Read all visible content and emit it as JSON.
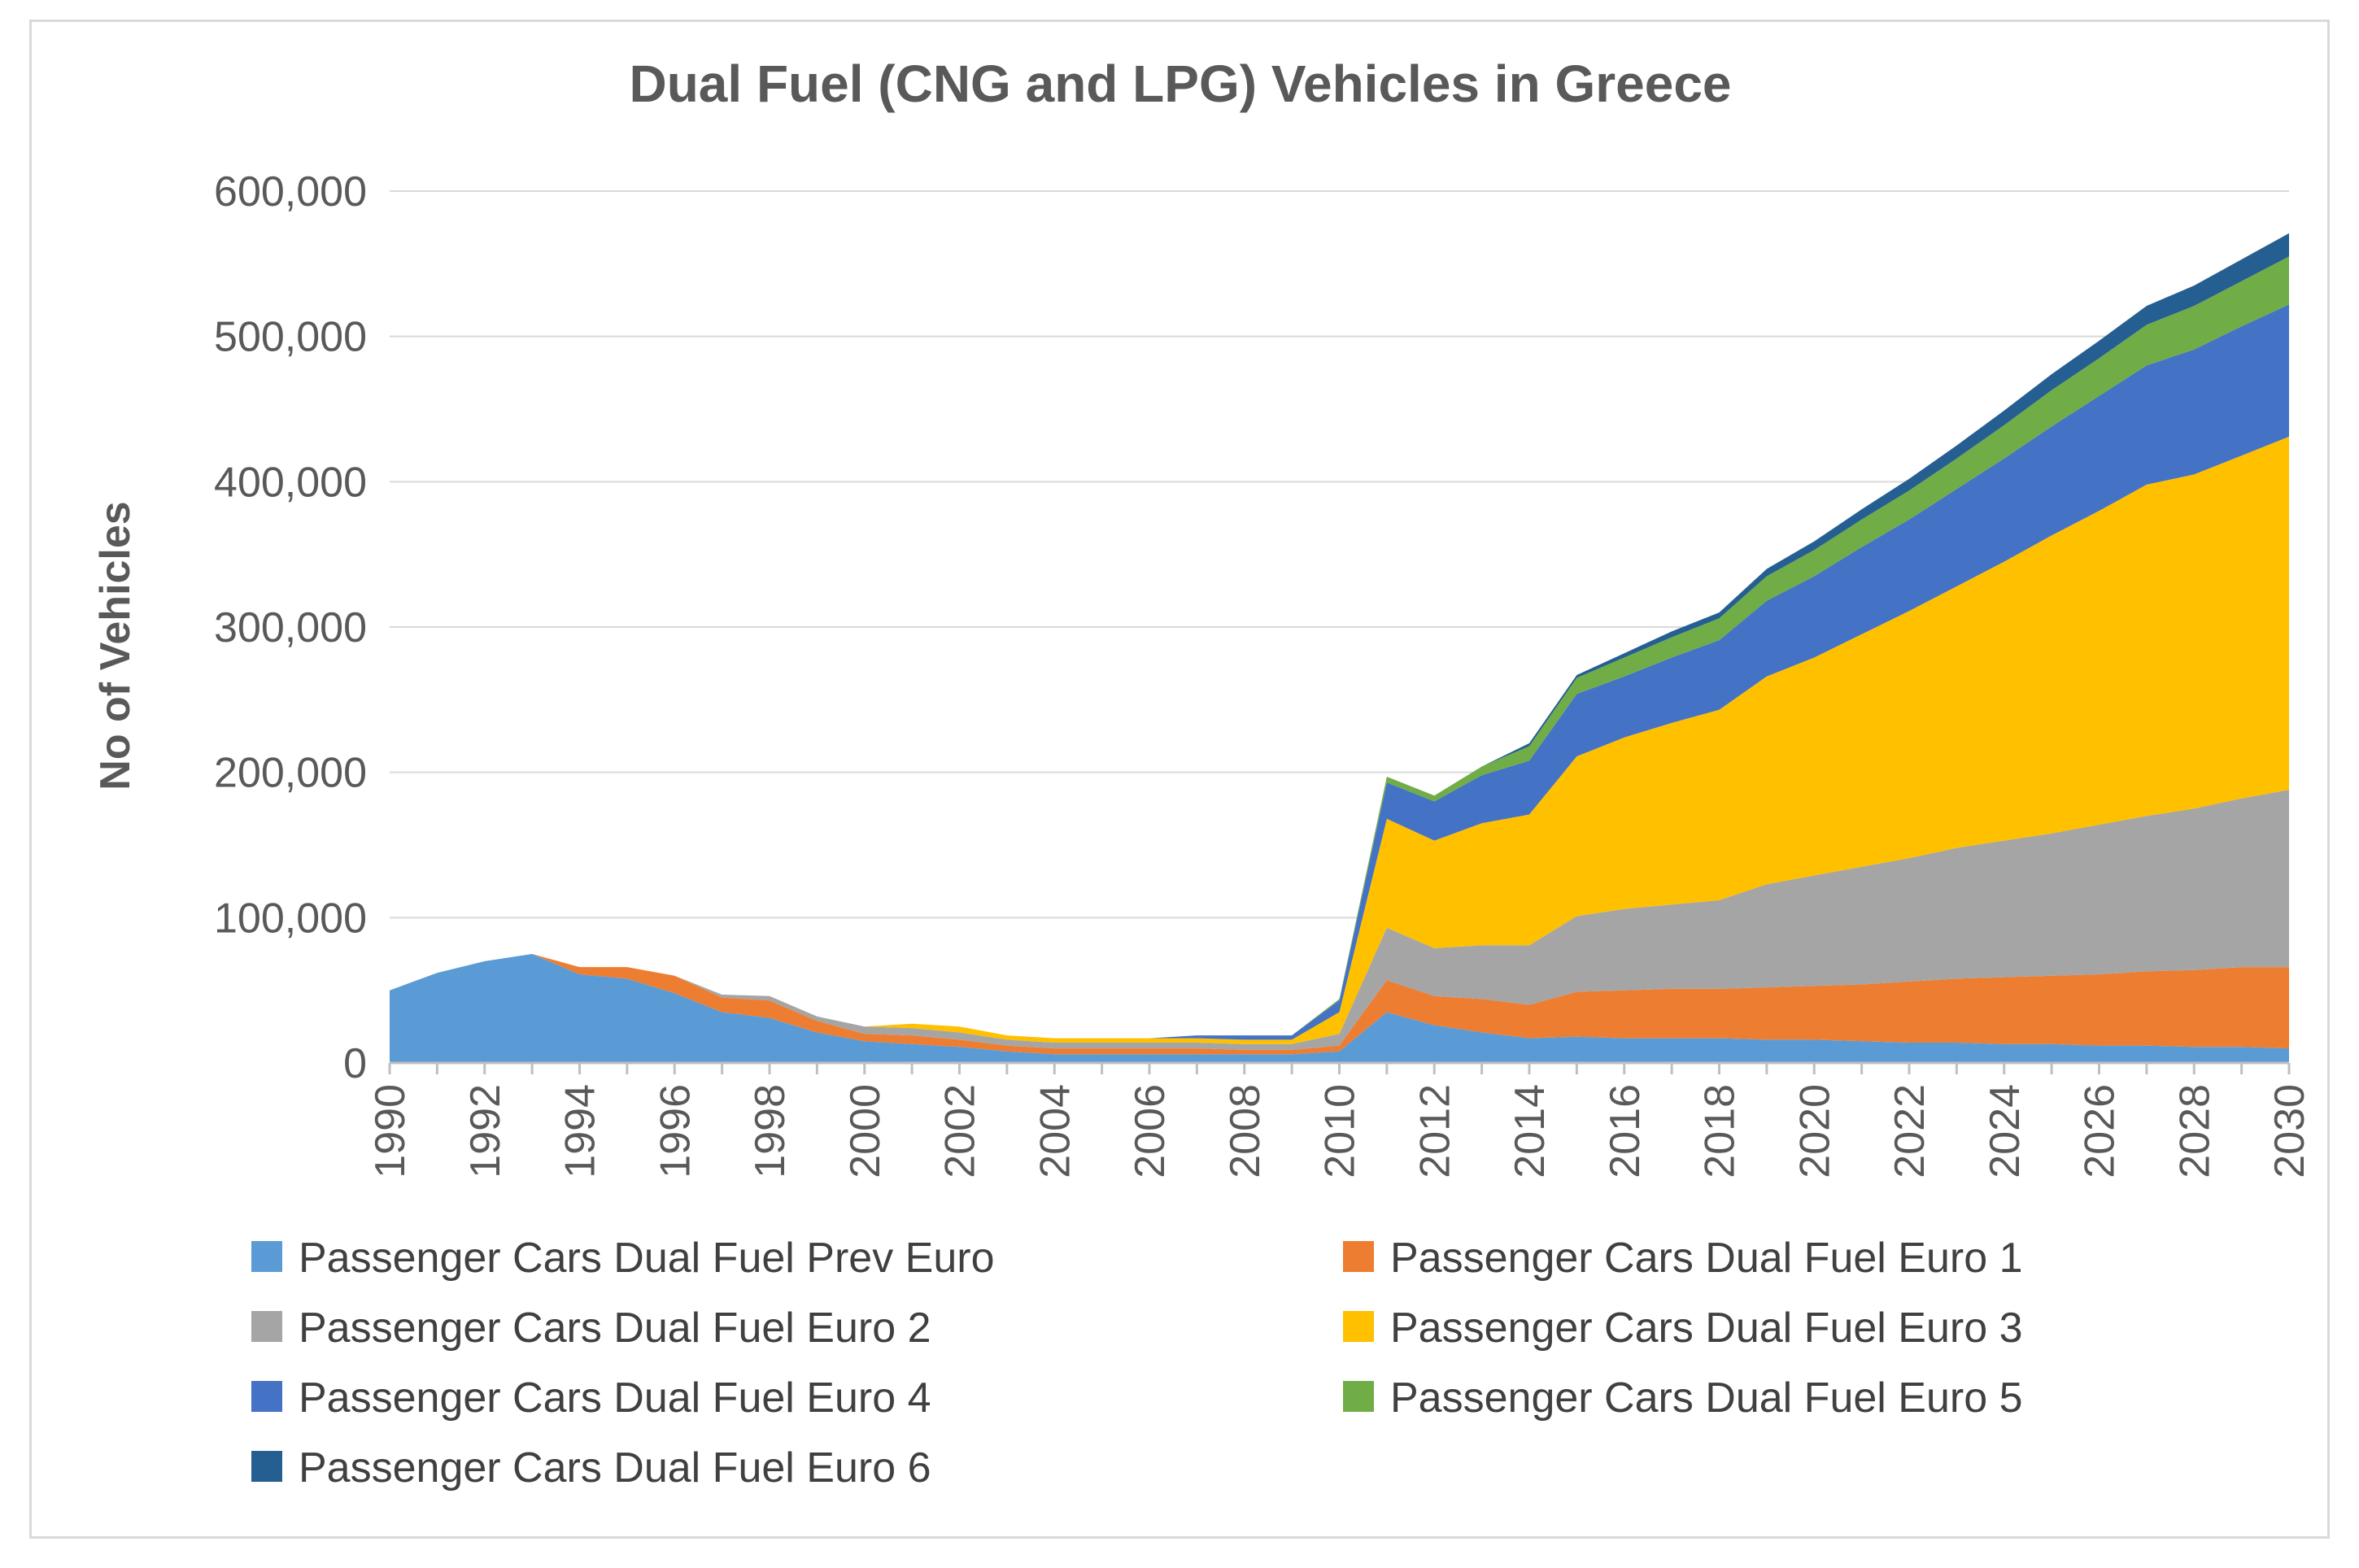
{
  "chart_data": {
    "type": "area",
    "stacked": true,
    "title": "Dual Fuel (CNG and LPG) Vehicles in Greece",
    "xlabel": "",
    "ylabel": "No of Vehicles",
    "ylim": [
      0,
      600000
    ],
    "yticks": [
      0,
      100000,
      200000,
      300000,
      400000,
      500000,
      600000
    ],
    "ytick_labels": [
      "0",
      "100,000",
      "200,000",
      "300,000",
      "400,000",
      "500,000",
      "600,000"
    ],
    "x": [
      1990,
      1991,
      1992,
      1993,
      1994,
      1995,
      1996,
      1997,
      1998,
      1999,
      2000,
      2001,
      2002,
      2003,
      2004,
      2005,
      2006,
      2007,
      2008,
      2009,
      2010,
      2011,
      2012,
      2013,
      2014,
      2015,
      2016,
      2017,
      2018,
      2019,
      2020,
      2021,
      2022,
      2023,
      2024,
      2025,
      2026,
      2027,
      2028,
      2029,
      2030
    ],
    "xtick_labels": [
      "1990",
      "1992",
      "1994",
      "1996",
      "1998",
      "2000",
      "2002",
      "2004",
      "2006",
      "2008",
      "2010",
      "2012",
      "2014",
      "2016",
      "2018",
      "2020",
      "2022",
      "2024",
      "2026",
      "2028",
      "2030"
    ],
    "grid": true,
    "legend_position": "bottom",
    "series": [
      {
        "name": "Passenger Cars Dual Fuel Prev Euro",
        "color": "#5b9bd5",
        "values": [
          50000,
          62000,
          70000,
          75000,
          61000,
          58000,
          48000,
          35000,
          31000,
          21000,
          15000,
          13000,
          11000,
          8000,
          6000,
          6000,
          6000,
          6000,
          6000,
          6000,
          8000,
          35000,
          26000,
          21000,
          17000,
          18000,
          17000,
          17000,
          17000,
          16000,
          16000,
          15000,
          14000,
          14000,
          13000,
          13000,
          12000,
          12000,
          11000,
          11000,
          10000
        ]
      },
      {
        "name": "Passenger Cars Dual Fuel Euro 1",
        "color": "#ed7d31",
        "values": [
          0,
          0,
          0,
          0,
          5000,
          8000,
          12000,
          10000,
          12000,
          8000,
          5000,
          6000,
          5000,
          4000,
          4000,
          4000,
          4000,
          4000,
          3000,
          3000,
          4000,
          22000,
          20000,
          23000,
          23000,
          31000,
          33000,
          34000,
          34000,
          36000,
          37000,
          39000,
          42000,
          44000,
          46000,
          47000,
          49000,
          51000,
          53000,
          55000,
          56000
        ]
      },
      {
        "name": "Passenger Cars Dual Fuel Euro 2",
        "color": "#a5a5a5",
        "values": [
          0,
          0,
          0,
          0,
          0,
          0,
          0,
          2000,
          3000,
          3000,
          5000,
          5000,
          5000,
          4000,
          4000,
          4000,
          4000,
          4000,
          4000,
          4000,
          8000,
          36000,
          33000,
          37000,
          41000,
          52000,
          56000,
          58000,
          61000,
          71000,
          76000,
          81000,
          85000,
          90000,
          94000,
          98000,
          103000,
          107000,
          111000,
          116000,
          122000
        ]
      },
      {
        "name": "Passenger Cars Dual Fuel Euro 3",
        "color": "#ffc000",
        "values": [
          0,
          0,
          0,
          0,
          0,
          0,
          0,
          0,
          0,
          0,
          0,
          3000,
          4000,
          3000,
          3000,
          3000,
          3000,
          3000,
          3000,
          3000,
          15000,
          75000,
          74000,
          84000,
          90000,
          110000,
          118000,
          125000,
          131000,
          143000,
          150000,
          160000,
          170000,
          180000,
          192000,
          205000,
          216000,
          228000,
          230000,
          236000,
          243000
        ]
      },
      {
        "name": "Passenger Cars Dual Fuel Euro 4",
        "color": "#4472c4",
        "values": [
          0,
          0,
          0,
          0,
          0,
          0,
          0,
          0,
          0,
          0,
          0,
          0,
          0,
          0,
          0,
          0,
          0,
          2000,
          3000,
          3000,
          8000,
          25000,
          27000,
          33000,
          37000,
          43000,
          42000,
          45000,
          48000,
          52000,
          56000,
          60000,
          63000,
          67000,
          71000,
          75000,
          79000,
          82000,
          86000,
          89000,
          91000
        ]
      },
      {
        "name": "Passenger Cars Dual Fuel Euro 5",
        "color": "#70ad47",
        "values": [
          0,
          0,
          0,
          0,
          0,
          0,
          0,
          0,
          0,
          0,
          0,
          0,
          0,
          0,
          0,
          0,
          0,
          0,
          0,
          0,
          1000,
          4000,
          4000,
          6000,
          10000,
          11000,
          13000,
          14000,
          15000,
          17000,
          18000,
          19000,
          20000,
          21000,
          23000,
          25000,
          26000,
          28000,
          30000,
          31000,
          33000
        ]
      },
      {
        "name": "Passenger Cars Dual Fuel Euro 6",
        "color": "#255e91",
        "values": [
          0,
          0,
          0,
          0,
          0,
          0,
          0,
          0,
          0,
          0,
          0,
          0,
          0,
          0,
          0,
          0,
          0,
          0,
          0,
          0,
          0,
          0,
          0,
          0,
          2000,
          2000,
          3000,
          4000,
          4000,
          5000,
          6000,
          7000,
          8000,
          9000,
          10000,
          11000,
          12000,
          13000,
          14000,
          15000,
          16000
        ]
      }
    ]
  }
}
